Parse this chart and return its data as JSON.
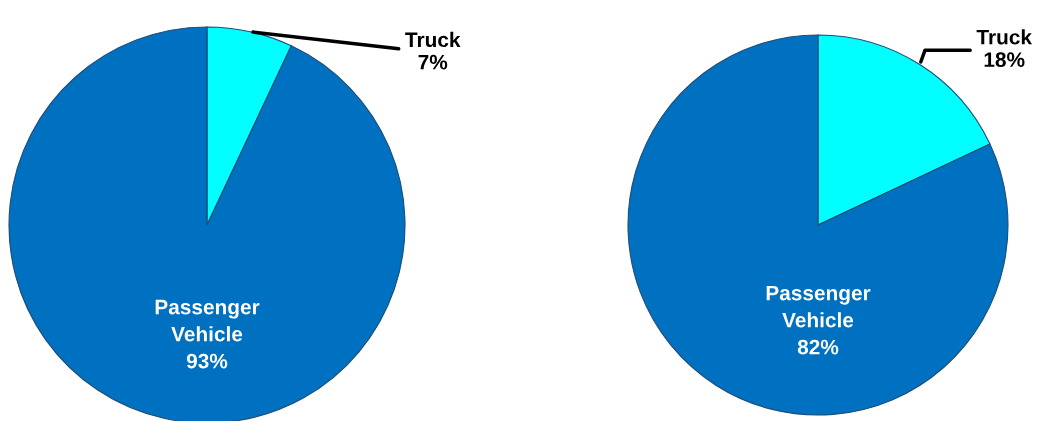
{
  "chart_data": [
    {
      "type": "pie",
      "categories": [
        "Truck",
        "Passenger\nVehicle"
      ],
      "values": [
        7,
        93
      ],
      "colors": [
        "#00ffff",
        "#0070c0"
      ],
      "value_labels": [
        "7%",
        "93%"
      ]
    },
    {
      "type": "pie",
      "categories": [
        "Truck",
        "Passenger\nVehicle"
      ],
      "values": [
        18,
        82
      ],
      "colors": [
        "#00ffff",
        "#0070c0"
      ],
      "value_labels": [
        "18%",
        "82%"
      ]
    }
  ]
}
